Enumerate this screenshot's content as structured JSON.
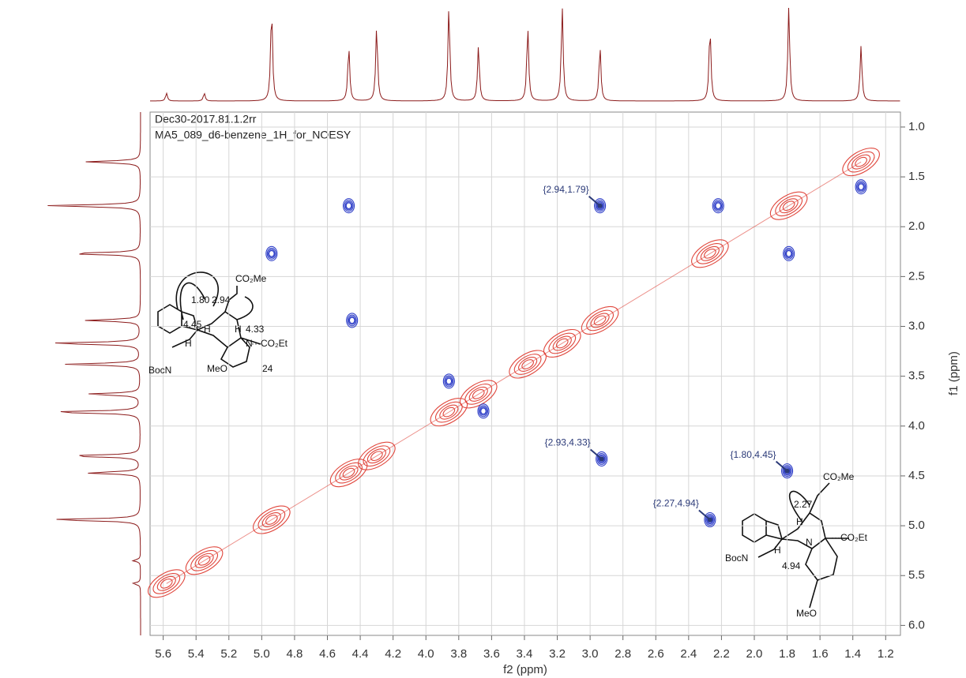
{
  "chart_data": {
    "type": "contour",
    "title": "Dec30-2017.81.1.2rr",
    "subtitle": "MA5_089_d6-benzene_1H_for_NOESY",
    "xlabel": "f2 (ppm)",
    "ylabel": "f1 (ppm)",
    "xlim": [
      5.68,
      1.11
    ],
    "ylim": [
      0.85,
      6.1
    ],
    "xticks": [
      5.6,
      5.4,
      5.2,
      {
        "value": 5,
        "label": "5.0"
      },
      4.8,
      4.6,
      4.4,
      4.2,
      {
        "value": 4,
        "label": "4.0"
      },
      3.8,
      3.6,
      3.4,
      3.2,
      {
        "value": 3,
        "label": "3.0"
      },
      2.8,
      2.6,
      2.4,
      2.2,
      {
        "value": 2,
        "label": "2.0"
      },
      1.8,
      1.6,
      1.4,
      1.2
    ],
    "yticks": [
      {
        "value": 1,
        "label": "1.0"
      },
      1.5,
      {
        "value": 2,
        "label": "2.0"
      },
      2.5,
      {
        "value": 3,
        "label": "3.0"
      },
      3.5,
      {
        "value": 4,
        "label": "4.0"
      },
      4.5,
      {
        "value": 5,
        "label": "5.0"
      },
      5.5,
      {
        "value": 6,
        "label": "6.0"
      }
    ],
    "grid": true,
    "positive_peaks": {
      "color": "#e0463c",
      "x": [
        5.58,
        5.35,
        4.94,
        4.47,
        4.3,
        3.86,
        3.68,
        3.38,
        3.17,
        2.94,
        2.27,
        1.79,
        1.35
      ],
      "y": [
        5.58,
        5.35,
        4.94,
        4.47,
        4.3,
        3.86,
        3.68,
        3.38,
        3.17,
        2.94,
        2.27,
        1.79,
        1.35
      ]
    },
    "negative_peaks": {
      "color": "#2f3fc8",
      "x": [
        4.94,
        4.47,
        4.45,
        3.86,
        3.65,
        2.94,
        2.93,
        2.22,
        1.79,
        1.8,
        2.27,
        1.35
      ],
      "y": [
        2.27,
        1.79,
        2.94,
        3.55,
        3.85,
        1.79,
        4.33,
        1.79,
        2.27,
        4.45,
        4.94,
        1.6
      ]
    },
    "annotations": [
      {
        "text": "{2.94,1.79}",
        "x": 2.94,
        "y": 1.79
      },
      {
        "text": "{2.93,4.33}",
        "x": 2.93,
        "y": 4.33
      },
      {
        "text": "{1.80,4.45}",
        "x": 1.8,
        "y": 4.45
      },
      {
        "text": "{2.27,4.94}",
        "x": 2.27,
        "y": 4.94
      }
    ],
    "structures": [
      {
        "labels": [
          "CO₂Me",
          "1.80",
          "2.94",
          "4.45",
          "H",
          "H",
          "H",
          "4.33",
          "···CO₂Et",
          "N",
          "BocN",
          "MeO",
          "24"
        ]
      },
      {
        "labels": [
          "CO₂Me",
          "2.27",
          "H",
          "···CO₂Et",
          "N",
          "H",
          "BocN",
          "4.94",
          "MeO"
        ]
      }
    ]
  }
}
